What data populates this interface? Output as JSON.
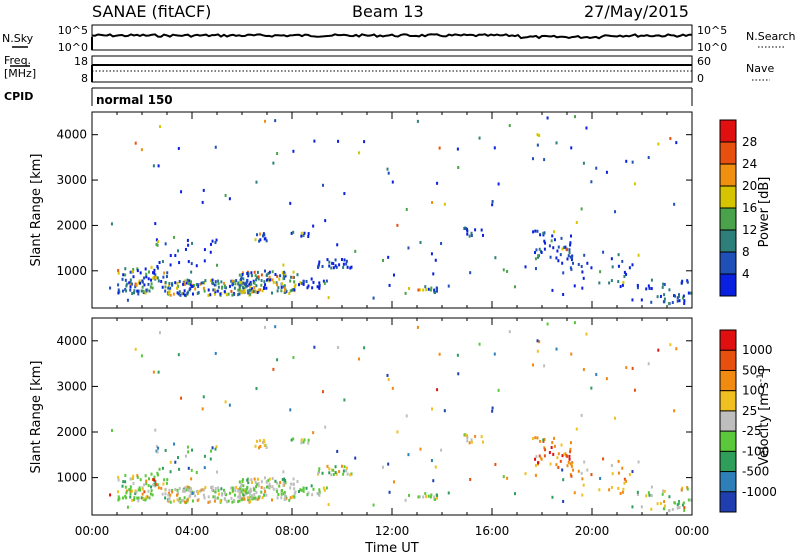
{
  "header": {
    "title": "SANAE (fitACF)",
    "beam": "Beam 13",
    "date": "27/May/2015"
  },
  "status_panels": {
    "nsky_label": "N.Sky",
    "nsky_ticks": [
      "10^5",
      "10^0"
    ],
    "nsearch_label": "N.Search",
    "nsearch_ticks": [
      "10^5",
      "10^0"
    ],
    "freq_label_1": "Freq.",
    "freq_label_2": "[MHz]",
    "freq_ticks": [
      "18",
      "8"
    ],
    "nave_label": "Nave",
    "nave_ticks": [
      "60",
      "0"
    ],
    "cpid_label": "CPID",
    "cpid_value": "normal 150"
  },
  "chart_data": [
    {
      "type": "heatmap",
      "name": "power",
      "ylabel": "Slant Range [km]",
      "xlabel": "",
      "x_ticks": [
        "00:00",
        "04:00",
        "08:00",
        "12:00",
        "16:00",
        "20:00",
        "00:00"
      ],
      "x_range_hours": [
        0,
        24
      ],
      "y_ticks": [
        "1000",
        "2000",
        "3000",
        "4000"
      ],
      "ylim": [
        180,
        4500
      ],
      "colorbar_label": "Power [dB]",
      "colorbar_ticks": [
        "28",
        "24",
        "20",
        "16",
        "12",
        "8",
        "4"
      ],
      "colorbar_range": [
        0,
        32
      ],
      "colorbar_colors": [
        "#0a20e0",
        "#1f50b8",
        "#2e7f7a",
        "#4aa34a",
        "#d6c400",
        "#f09010",
        "#e85010",
        "#e01010"
      ]
    },
    {
      "type": "heatmap",
      "name": "velocity",
      "ylabel": "Slant Range [km]",
      "xlabel": "Time UT",
      "x_ticks": [
        "00:00",
        "04:00",
        "08:00",
        "12:00",
        "16:00",
        "20:00",
        "00:00"
      ],
      "x_range_hours": [
        0,
        24
      ],
      "y_ticks": [
        "1000",
        "2000",
        "3000",
        "4000"
      ],
      "ylim": [
        180,
        4500
      ],
      "colorbar_label": "Velocity [m s",
      "colorbar_label_sup": "-1",
      "colorbar_label_end": "]",
      "colorbar_ticks": [
        "1000",
        "500",
        "100",
        "25",
        "-25",
        "-100",
        "-500",
        "-1000"
      ],
      "colorbar_colors": [
        "#1f3fb0",
        "#2e7fb8",
        "#2e9e5a",
        "#5ac83a",
        "#bebebe",
        "#f0c020",
        "#f08a10",
        "#e85010",
        "#e01010"
      ]
    }
  ]
}
